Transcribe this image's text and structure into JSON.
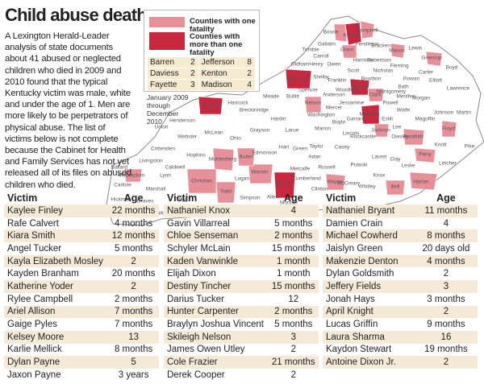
{
  "header": {
    "title": "Child abuse deaths"
  },
  "intro": "A Lexington Herald-Leader analysis of state documents about 41 abused or neglected children who died in 2009 and 2010 found that the typical Kentucky victim was male, white and under the age of 1. Men are more likely to be perpetrators of physical abuse. The list of victims below is not complete because the Cabinet for Health and Family Services has not yet released all of its files on abused children who died.",
  "legend": {
    "one": "Counties with one fatality",
    "more": "Counties with more than one fatality",
    "counts": [
      {
        "county": "Barren",
        "deaths": 2
      },
      {
        "county": "Daviess",
        "deaths": 2
      },
      {
        "county": "Fayette",
        "deaths": 3
      },
      {
        "county": "Jefferson",
        "deaths": 8
      },
      {
        "county": "Kenton",
        "deaths": 2
      },
      {
        "county": "Madison",
        "deaths": 4
      }
    ],
    "period": "January 2009 through December 2010"
  },
  "map": {
    "counties": [
      "Boone",
      "Kenton",
      "Campbell",
      "Gallatin",
      "Grant",
      "Pendleton",
      "Bracken",
      "Mason",
      "Lewis",
      "Greenup",
      "Boyd",
      "Carter",
      "Trimble",
      "Carroll",
      "Owen",
      "Harrison",
      "Robertson",
      "Fleming",
      "Rowan",
      "Elliott",
      "Lawrence",
      "Oldham",
      "Henry",
      "Shelby",
      "Franklin",
      "Scott",
      "Bourbon",
      "Nicholas",
      "Bath",
      "Jefferson",
      "Spencer",
      "Anderson",
      "Woodford",
      "Fayette",
      "Clark",
      "Montgomery",
      "Menifee",
      "Morgan",
      "Johnson",
      "Martin",
      "Bullitt",
      "Nelson",
      "Mercer",
      "Jessamine",
      "Powell",
      "Wolfe",
      "Magoffin",
      "Floyd",
      "Pike",
      "Washington",
      "Boyle",
      "Garrard",
      "Madison",
      "Estill",
      "Lee",
      "Breathitt",
      "Knott",
      "Letcher",
      "Perry",
      "Owsley",
      "Jackson",
      "Rockcastle",
      "Lincoln",
      "Marion",
      "Larue",
      "Hardin",
      "Meade",
      "Breckinridge",
      "Hancock",
      "Grayson",
      "Hart",
      "Green",
      "Taylor",
      "Casey",
      "Adair",
      "Pulaski",
      "Laurel",
      "Clay",
      "Leslie",
      "Harlan",
      "Bell",
      "Knox",
      "Whitley",
      "McCreary",
      "Wayne",
      "Clinton",
      "Cumberland",
      "Russell",
      "Metcalfe",
      "Barren",
      "Monroe",
      "Allen",
      "Warren",
      "Edmonson",
      "Butler",
      "Ohio",
      "Daviess",
      "Henderson",
      "Union",
      "Webster",
      "McLean",
      "Muhlenberg",
      "Hopkins",
      "Crittenden",
      "Caldwell",
      "Livingston",
      "Lyon",
      "Christian",
      "Todd",
      "Logan",
      "Simpson",
      "Trigg",
      "Marshall",
      "Calloway",
      "Graves",
      "McCracken",
      "Ballard",
      "Carlisle",
      "Hickman",
      "Fulton"
    ]
  },
  "tables": [
    {
      "headers": [
        "Victim",
        "Age"
      ],
      "rows": [
        [
          "Kaylee Finley",
          "22 months"
        ],
        [
          "Rafe Calvert",
          "4 months"
        ],
        [
          "Kiara Smith",
          "12 months"
        ],
        [
          "Angel Tucker",
          "5 months"
        ],
        [
          "Kayla Elizabeth Mosley",
          "2"
        ],
        [
          "Kayden Branham",
          "20 months"
        ],
        [
          "Katherine Yoder",
          "2"
        ],
        [
          "Rylee Campbell",
          "2 months"
        ],
        [
          "Ariel Allison",
          "7 months"
        ],
        [
          "Gaige Pyles",
          "7 months"
        ],
        [
          "Kelsey Moore",
          "13"
        ],
        [
          "Karlie Mellick",
          "8 months"
        ],
        [
          "Dylan Payne",
          "5"
        ],
        [
          "Jaxon Payne",
          "3 years"
        ]
      ]
    },
    {
      "headers": [
        "Victim",
        "Age"
      ],
      "rows": [
        [
          "Nathaniel Knox",
          "4"
        ],
        [
          "Gavin Villarreal",
          "5 months"
        ],
        [
          "Chloe Senseman",
          "2 months"
        ],
        [
          "Schyler McLain",
          "15 months"
        ],
        [
          "Kaden Vanwinkle",
          "1 month"
        ],
        [
          "Elijah Dixon",
          "1 month"
        ],
        [
          "Destiny Tincher",
          "15 months"
        ],
        [
          "Darius Tucker",
          "12"
        ],
        [
          "Hunter Carpenter",
          "2 months"
        ],
        [
          "Braylyn Joshua Vincent",
          "5 months"
        ],
        [
          "Skileigh Nelson",
          "3"
        ],
        [
          "James Owen Utley",
          "2"
        ],
        [
          "Cole Frazier",
          "21 months"
        ],
        [
          "Derek Cooper",
          "2"
        ]
      ]
    },
    {
      "headers": [
        "Victim",
        "Age"
      ],
      "rows": [
        [
          "Nathaniel Bryant",
          "11 months"
        ],
        [
          "Damien Crain",
          "4"
        ],
        [
          "Michael Cowherd",
          "8 months"
        ],
        [
          "Jaislyn Green",
          "20 days old"
        ],
        [
          "Makenzie Denton",
          "4 months"
        ],
        [
          "Dylan Goldsmith",
          "2"
        ],
        [
          "Jeffery Fields",
          "3"
        ],
        [
          "Jonah Hays",
          "3 months"
        ],
        [
          "April Knight",
          "2"
        ],
        [
          "Lucas Griffin",
          "9 months"
        ],
        [
          "Laura Sharma",
          "16"
        ],
        [
          "Kaydon Stewart",
          "19 months"
        ],
        [
          "Antoine Dixon Jr.",
          "2"
        ]
      ]
    }
  ]
}
